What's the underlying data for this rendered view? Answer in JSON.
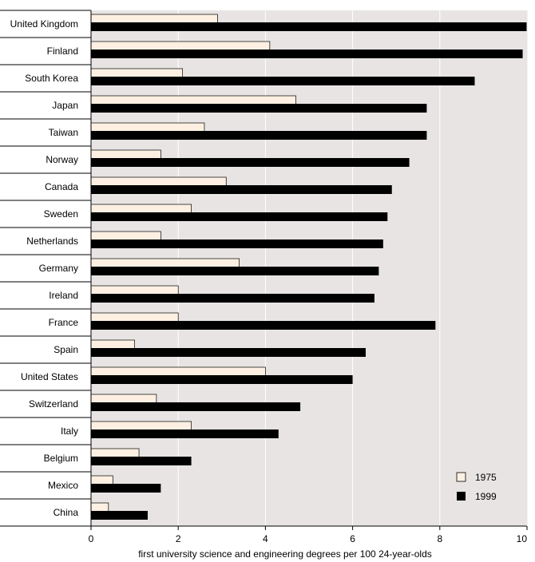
{
  "chart_data": {
    "type": "bar",
    "orientation": "horizontal",
    "title": "",
    "xlabel": "first university science and engineering degrees per 100 24-year-olds",
    "ylabel": "",
    "xlim": [
      0,
      10
    ],
    "xticks": [
      0,
      2,
      4,
      6,
      8,
      10
    ],
    "grid": true,
    "legend_position": "bottom-right",
    "categories": [
      "United Kingdom",
      "Finland",
      "South Korea",
      "Japan",
      "Taiwan",
      "Norway",
      "Canada",
      "Sweden",
      "Netherlands",
      "Germany",
      "Ireland",
      "France",
      "Spain",
      "United States",
      "Switzerland",
      "Italy",
      "Belgium",
      "Mexico",
      "China"
    ],
    "series": [
      {
        "name": "1975",
        "color": "#fdf0e2",
        "values": [
          2.9,
          4.1,
          2.1,
          4.7,
          2.6,
          1.6,
          3.1,
          2.3,
          1.6,
          3.4,
          2.0,
          2.0,
          1.0,
          4.0,
          1.5,
          2.3,
          1.1,
          0.5,
          0.4
        ]
      },
      {
        "name": "1999",
        "color": "#000000",
        "values": [
          10.0,
          9.9,
          8.8,
          7.7,
          7.7,
          7.3,
          6.9,
          6.8,
          6.7,
          6.6,
          6.5,
          7.9,
          6.3,
          6.0,
          4.8,
          4.3,
          2.3,
          1.6,
          1.3
        ]
      }
    ],
    "colors": {
      "plot_background": "#e8e4e4",
      "grid": "#ffffff"
    }
  }
}
